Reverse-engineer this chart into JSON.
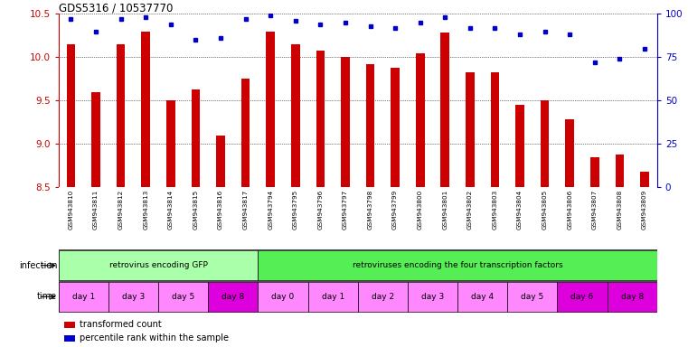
{
  "title": "GDS5316 / 10537770",
  "samples": [
    "GSM943810",
    "GSM943811",
    "GSM943812",
    "GSM943813",
    "GSM943814",
    "GSM943815",
    "GSM943816",
    "GSM943817",
    "GSM943794",
    "GSM943795",
    "GSM943796",
    "GSM943797",
    "GSM943798",
    "GSM943799",
    "GSM943800",
    "GSM943801",
    "GSM943802",
    "GSM943803",
    "GSM943804",
    "GSM943805",
    "GSM943806",
    "GSM943807",
    "GSM943808",
    "GSM943809"
  ],
  "bar_values": [
    10.15,
    9.6,
    10.15,
    10.3,
    9.5,
    9.63,
    9.1,
    9.75,
    10.3,
    10.15,
    10.08,
    10.0,
    9.92,
    9.88,
    10.05,
    10.28,
    9.83,
    9.83,
    9.45,
    9.5,
    9.28,
    8.85,
    8.88,
    8.68
  ],
  "percentile_values": [
    97,
    90,
    97,
    98,
    94,
    85,
    86,
    97,
    99,
    96,
    94,
    95,
    93,
    92,
    95,
    98,
    92,
    92,
    88,
    90,
    88,
    72,
    74,
    80
  ],
  "ylim_left": [
    8.5,
    10.5
  ],
  "ylim_right": [
    0,
    100
  ],
  "yticks_left": [
    8.5,
    9.0,
    9.5,
    10.0,
    10.5
  ],
  "yticks_right": [
    0,
    25,
    50,
    75,
    100
  ],
  "bar_color": "#cc0000",
  "dot_color": "#0000cc",
  "infection_groups": [
    {
      "label": "retrovirus encoding GFP",
      "start": 0,
      "end": 8,
      "color": "#aaffaa"
    },
    {
      "label": "retroviruses encoding the four transcription factors",
      "start": 8,
      "end": 24,
      "color": "#55ee55"
    }
  ],
  "time_groups": [
    {
      "label": "day 1",
      "start": 0,
      "end": 2,
      "color": "#ff88ff"
    },
    {
      "label": "day 3",
      "start": 2,
      "end": 4,
      "color": "#ff88ff"
    },
    {
      "label": "day 5",
      "start": 4,
      "end": 6,
      "color": "#ff88ff"
    },
    {
      "label": "day 8",
      "start": 6,
      "end": 8,
      "color": "#dd00dd"
    },
    {
      "label": "day 0",
      "start": 8,
      "end": 10,
      "color": "#ff88ff"
    },
    {
      "label": "day 1",
      "start": 10,
      "end": 12,
      "color": "#ff88ff"
    },
    {
      "label": "day 2",
      "start": 12,
      "end": 14,
      "color": "#ff88ff"
    },
    {
      "label": "day 3",
      "start": 14,
      "end": 16,
      "color": "#ff88ff"
    },
    {
      "label": "day 4",
      "start": 16,
      "end": 18,
      "color": "#ff88ff"
    },
    {
      "label": "day 5",
      "start": 18,
      "end": 20,
      "color": "#ff88ff"
    },
    {
      "label": "day 6",
      "start": 20,
      "end": 22,
      "color": "#dd00dd"
    },
    {
      "label": "day 8",
      "start": 22,
      "end": 24,
      "color": "#dd00dd"
    }
  ],
  "legend_items": [
    {
      "label": "transformed count",
      "color": "#cc0000"
    },
    {
      "label": "percentile rank within the sample",
      "color": "#0000cc"
    }
  ],
  "label_bg": "#cccccc",
  "bg_color": "#ffffff",
  "tick_color_left": "#cc0000",
  "tick_color_right": "#0000cc",
  "infection_label": "infection",
  "time_label": "time"
}
